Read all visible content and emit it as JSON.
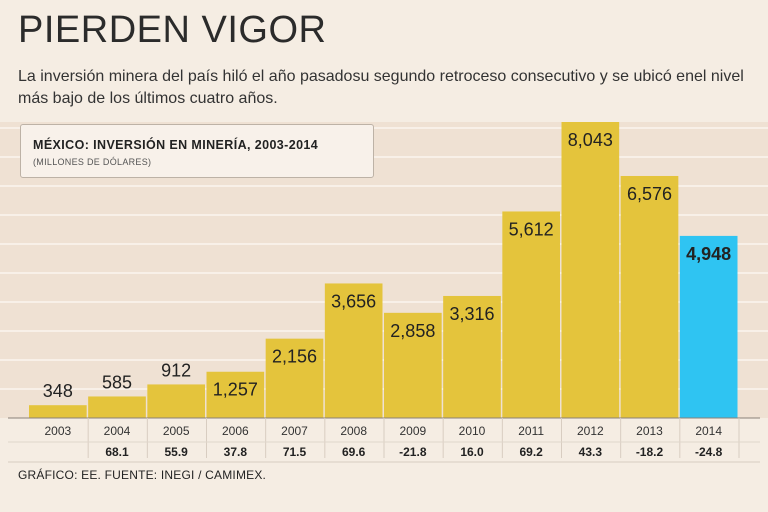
{
  "headline": "PIERDEN VIGOR",
  "subtitle": "La inversión minera del país hiló el año pasadosu segundo retroceso consecutivo y se ubicó enel nivel más bajo de los últimos cuatro años.",
  "credit": "GRÁFICO: EE. FUENTE: INEGI / CAMIMEX.",
  "colors": {
    "bar": "#e4c43c",
    "highlight": "#2fc4f2",
    "background": "#f5ede3",
    "plot_band": "#efe1d3"
  },
  "chart_data": {
    "type": "bar",
    "title": "MÉXICO: INVERSIÓN EN MINERÍA, 2003-2014",
    "ylabel": "(MILLONES DE DÓLARES)",
    "xlabel": "",
    "categories": [
      "2003",
      "2004",
      "2005",
      "2006",
      "2007",
      "2008",
      "2009",
      "2010",
      "2011",
      "2012",
      "2013",
      "2014"
    ],
    "values": [
      348,
      585,
      912,
      1257,
      2156,
      3656,
      2858,
      3316,
      5612,
      8043,
      6576,
      4948
    ],
    "value_labels": [
      "348",
      "585",
      "912",
      "1,257",
      "2,156",
      "3,656",
      "2,858",
      "3,316",
      "5,612",
      "8,043",
      "6,576",
      "4,948"
    ],
    "change_labels": [
      "",
      "68.1",
      "55.9",
      "37.8",
      "71.5",
      "69.6",
      "-21.8",
      "16.0",
      "69.2",
      "43.3",
      "-18.2",
      "-24.8"
    ],
    "highlight_index": 11,
    "ylim": [
      0,
      8043
    ],
    "grid": true
  }
}
